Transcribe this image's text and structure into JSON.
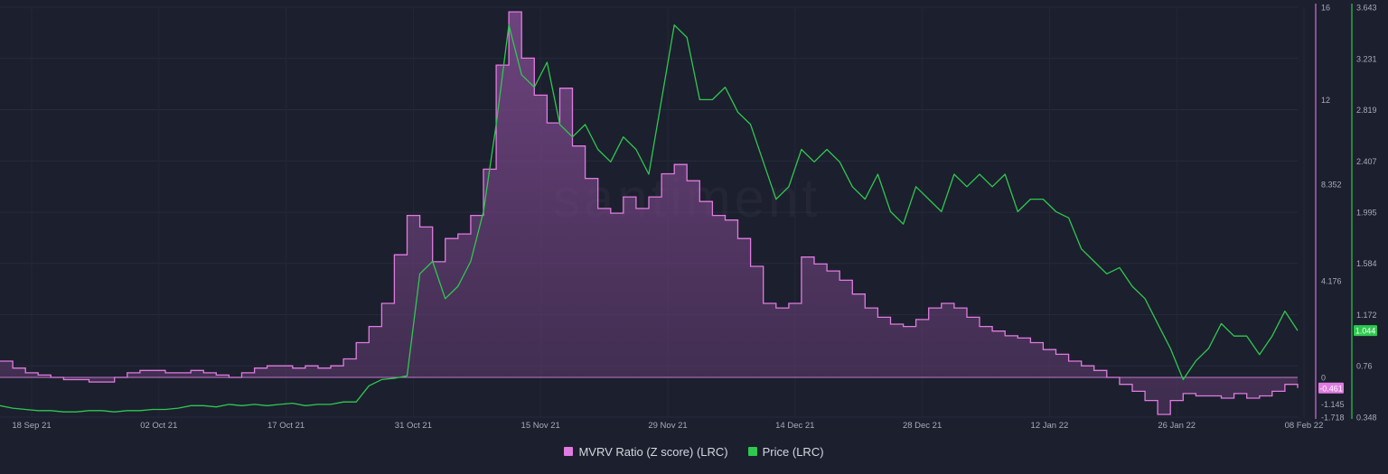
{
  "chart_data": {
    "type": "line",
    "watermark": "santiment",
    "x_ticks": [
      "18 Sep 21",
      "02 Oct 21",
      "17 Oct 21",
      "31 Oct 21",
      "15 Nov 21",
      "29 Nov 21",
      "14 Dec 21",
      "28 Dec 21",
      "12 Jan 22",
      "26 Jan 22",
      "08 Feb 22"
    ],
    "y_left": {
      "ticks": [
        "16",
        "12",
        "8.352",
        "4.176",
        "0",
        "-1.145",
        "-1.718"
      ],
      "range": [
        -1.718,
        16
      ]
    },
    "y_right": {
      "ticks": [
        "3.643",
        "3.231",
        "2.819",
        "2.407",
        "1.995",
        "1.584",
        "1.172",
        "0.76",
        "0.348"
      ],
      "range": [
        0.348,
        3.643
      ]
    },
    "series": [
      {
        "name": "MVRV Ratio (Z score) (LRC)",
        "color": "#e07be0",
        "last_value": "-0.461",
        "values": [
          0.7,
          0.4,
          0.2,
          0.1,
          0.0,
          -0.1,
          -0.1,
          -0.2,
          -0.2,
          0.0,
          0.2,
          0.3,
          0.3,
          0.2,
          0.2,
          0.3,
          0.2,
          0.1,
          0.0,
          0.2,
          0.4,
          0.5,
          0.5,
          0.4,
          0.5,
          0.4,
          0.5,
          0.8,
          1.5,
          2.2,
          3.2,
          5.3,
          7.0,
          6.5,
          5.0,
          6.0,
          6.2,
          7.0,
          9.0,
          13.5,
          15.8,
          13.8,
          12.2,
          11.0,
          12.5,
          10.0,
          8.6,
          7.3,
          7.1,
          7.8,
          7.3,
          7.8,
          8.8,
          9.2,
          8.5,
          7.6,
          7.0,
          6.8,
          6.0,
          4.8,
          3.2,
          3.0,
          3.2,
          5.2,
          4.9,
          4.6,
          4.2,
          3.6,
          3.0,
          2.6,
          2.3,
          2.2,
          2.5,
          3.0,
          3.2,
          3.0,
          2.6,
          2.2,
          2.0,
          1.8,
          1.7,
          1.5,
          1.2,
          1.0,
          0.7,
          0.5,
          0.3,
          0.0,
          -0.3,
          -0.6,
          -1.0,
          -1.6,
          -1.0,
          -0.7,
          -0.8,
          -0.8,
          -0.9,
          -0.7,
          -0.9,
          -0.8,
          -0.6,
          -0.3,
          -0.461
        ]
      },
      {
        "name": "Price (LRC)",
        "color": "#2ec84f",
        "last_value": "1.044",
        "values": [
          0.44,
          0.42,
          0.41,
          0.4,
          0.4,
          0.39,
          0.39,
          0.4,
          0.4,
          0.39,
          0.4,
          0.4,
          0.41,
          0.41,
          0.42,
          0.44,
          0.44,
          0.43,
          0.45,
          0.44,
          0.45,
          0.44,
          0.45,
          0.46,
          0.44,
          0.45,
          0.45,
          0.47,
          0.47,
          0.6,
          0.65,
          0.66,
          0.68,
          1.5,
          1.6,
          1.3,
          1.4,
          1.6,
          2.0,
          2.7,
          3.5,
          3.1,
          3.0,
          3.2,
          2.7,
          2.6,
          2.7,
          2.5,
          2.4,
          2.6,
          2.5,
          2.3,
          2.9,
          3.5,
          3.4,
          2.9,
          2.9,
          3.0,
          2.8,
          2.7,
          2.4,
          2.1,
          2.2,
          2.5,
          2.4,
          2.5,
          2.4,
          2.2,
          2.1,
          2.3,
          2.0,
          1.9,
          2.2,
          2.1,
          2.0,
          2.3,
          2.2,
          2.3,
          2.2,
          2.3,
          2.0,
          2.1,
          2.1,
          2.0,
          1.95,
          1.7,
          1.6,
          1.5,
          1.55,
          1.4,
          1.3,
          1.1,
          0.9,
          0.65,
          0.8,
          0.9,
          1.1,
          1.0,
          1.0,
          0.85,
          1.0,
          1.2,
          1.044
        ]
      }
    ],
    "grid": true,
    "legend_position": "bottom-center"
  }
}
